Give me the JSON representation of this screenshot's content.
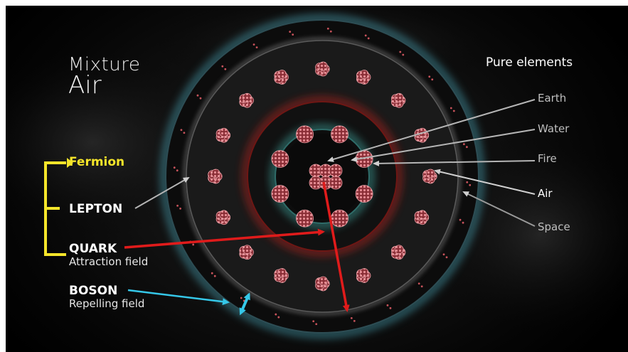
{
  "title": {
    "line1": "Mixture",
    "line2": "Air"
  },
  "pure_elements": {
    "heading": "Pure elements",
    "items": [
      "Earth",
      "Water",
      "Fire",
      "Air",
      "Space"
    ]
  },
  "particles": {
    "fermion": "Fermion",
    "lepton": "LEPTON",
    "quark": "QUARK",
    "quark_sub": "Attraction field",
    "boson": "BOSON",
    "boson_sub": "Repelling field"
  },
  "colors": {
    "fermion": "#f5e52a",
    "bracket": "#f5e52a",
    "quark_arrow": "#e01b1b",
    "boson_arrow": "#35c7e8",
    "grey_arrow": "#a8a8a8",
    "outer_glow": "#4fb6c9",
    "red_ring": "#b3201c",
    "atom": "#c8535b"
  }
}
